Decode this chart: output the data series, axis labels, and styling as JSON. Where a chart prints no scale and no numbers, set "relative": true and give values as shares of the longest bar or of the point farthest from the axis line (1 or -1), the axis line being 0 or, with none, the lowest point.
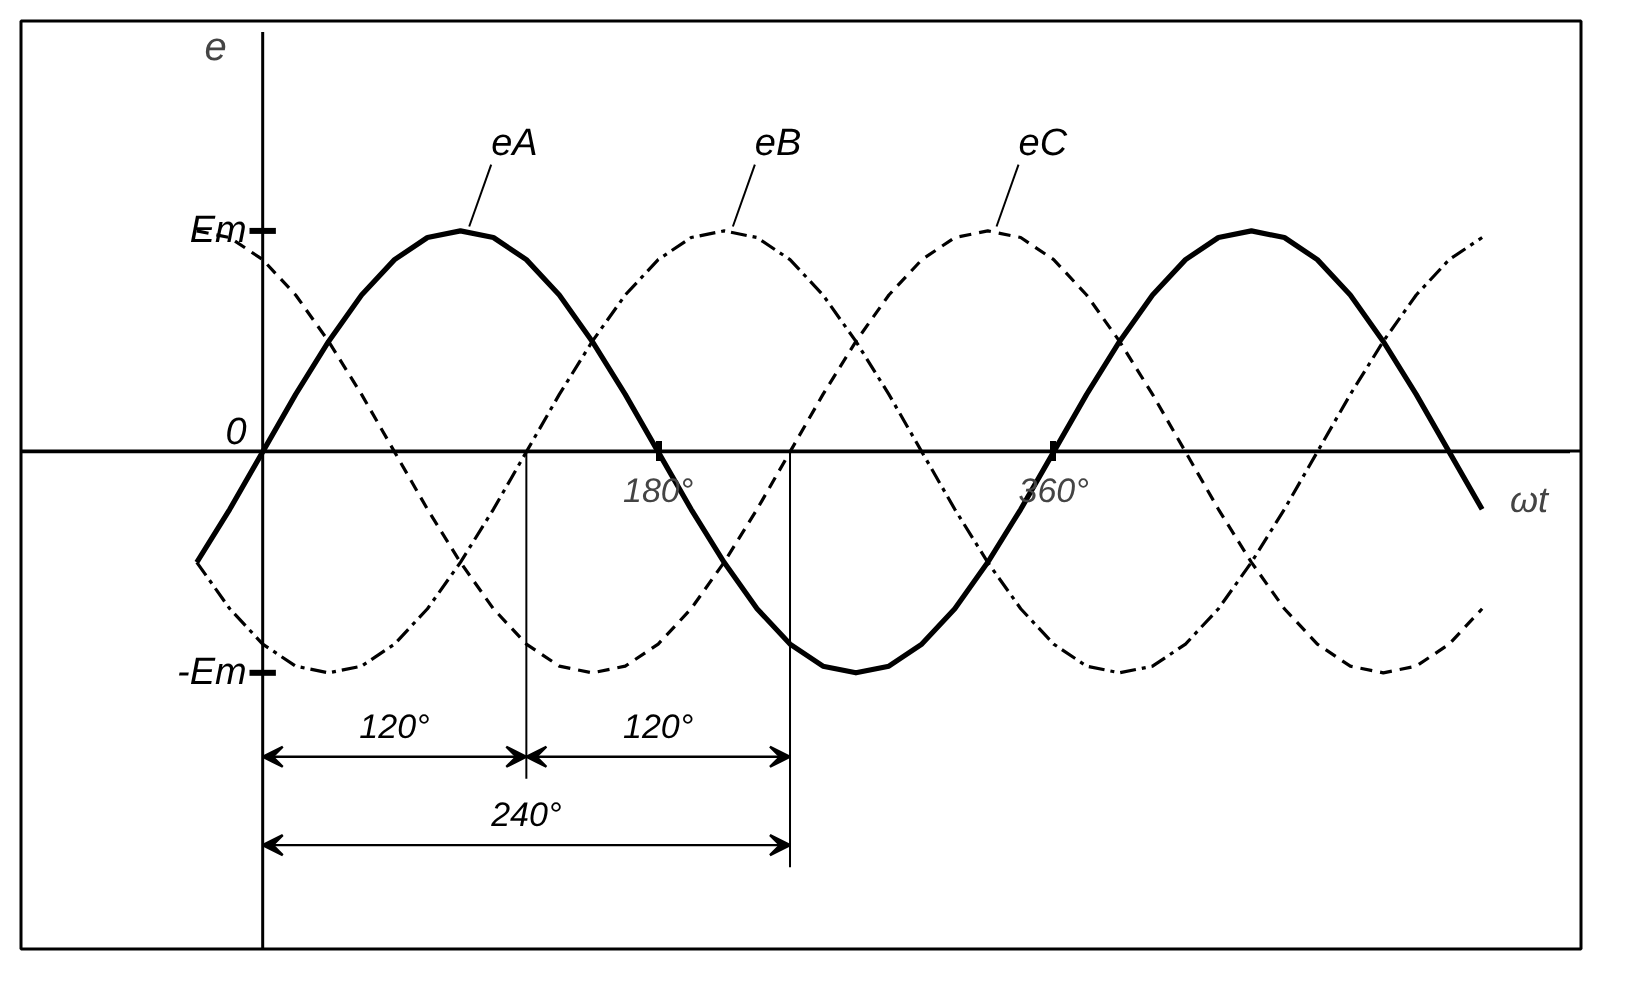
{
  "chart_data": {
    "type": "line",
    "x": [
      -30,
      -15,
      0,
      15,
      30,
      45,
      60,
      75,
      90,
      105,
      120,
      135,
      150,
      165,
      180,
      195,
      210,
      225,
      240,
      255,
      270,
      285,
      300,
      315,
      330,
      345,
      360,
      375,
      390,
      405,
      420,
      435,
      450,
      465,
      480,
      495,
      510,
      525,
      540,
      555
    ],
    "series": [
      {
        "name": "eA",
        "color": "#000000",
        "line_style": "solid",
        "values": [
          -0.5,
          -0.26,
          0,
          0.26,
          0.5,
          0.71,
          0.87,
          0.97,
          1,
          0.97,
          0.87,
          0.71,
          0.5,
          0.26,
          0,
          -0.26,
          -0.5,
          -0.71,
          -0.87,
          -0.97,
          -1,
          -0.97,
          -0.87,
          -0.71,
          -0.5,
          -0.26,
          0,
          0.26,
          0.5,
          0.71,
          0.87,
          0.97,
          1,
          0.97,
          0.87,
          0.71,
          0.5,
          0.26,
          0,
          -0.26
        ]
      },
      {
        "name": "eB",
        "color": "#000000",
        "line_style": "dashdot",
        "values": [
          -0.5,
          -0.71,
          -0.87,
          -0.97,
          -1,
          -0.97,
          -0.87,
          -0.71,
          -0.5,
          -0.26,
          0,
          0.26,
          0.5,
          0.71,
          0.87,
          0.97,
          1,
          0.97,
          0.87,
          0.71,
          0.5,
          0.26,
          0,
          -0.26,
          -0.5,
          -0.71,
          -0.87,
          -0.97,
          -1,
          -0.97,
          -0.87,
          -0.71,
          -0.5,
          -0.26,
          0,
          0.26,
          0.5,
          0.71,
          0.87,
          0.97
        ]
      },
      {
        "name": "eC",
        "color": "#000000",
        "line_style": "dashed",
        "values": [
          1,
          0.97,
          0.87,
          0.71,
          0.5,
          0.26,
          0,
          -0.26,
          -0.5,
          -0.71,
          -0.87,
          -0.97,
          -1,
          -0.97,
          -0.87,
          -0.71,
          -0.5,
          -0.26,
          0,
          0.26,
          0.5,
          0.71,
          0.87,
          0.97,
          1,
          0.97,
          0.87,
          0.71,
          0.5,
          0.26,
          0,
          -0.26,
          -0.5,
          -0.71,
          -0.87,
          -0.97,
          -1,
          -0.97,
          -0.87,
          -0.71
        ]
      }
    ],
    "xlim": [
      -110,
      600
    ],
    "relative": true,
    "xticks": [
      {
        "value": 180,
        "label": "180°"
      },
      {
        "value": 360,
        "label": "360°"
      }
    ],
    "annotations": [
      "Em",
      "0",
      "-Em",
      "120°",
      "120°",
      "240°"
    ],
    "xlabel": "ωt",
    "ylabel": "e",
    "ref_lines": [
      {
        "axis": "x",
        "value": 120,
        "label": null
      },
      {
        "axis": "x",
        "value": 240,
        "label": null
      }
    ],
    "grid": false
  }
}
